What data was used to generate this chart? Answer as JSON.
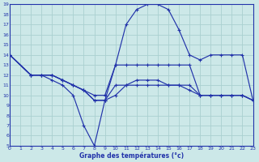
{
  "background_color": "#cce8e8",
  "grid_color": "#aad0d0",
  "line_color": "#2233aa",
  "xlabel": "Graphe des températures (°c)",
  "xlim": [
    0,
    23
  ],
  "ylim": [
    5,
    19
  ],
  "yticks": [
    5,
    6,
    7,
    8,
    9,
    10,
    11,
    12,
    13,
    14,
    15,
    16,
    17,
    18,
    19
  ],
  "xticks": [
    0,
    1,
    2,
    3,
    4,
    5,
    6,
    7,
    8,
    9,
    10,
    11,
    12,
    13,
    14,
    15,
    16,
    17,
    18,
    19,
    20,
    21,
    22,
    23
  ],
  "lines": [
    {
      "x": [
        0,
        2,
        3,
        4,
        5,
        6,
        7,
        8,
        9,
        10,
        11,
        12,
        13,
        14,
        15,
        16,
        17,
        18,
        19,
        20,
        21,
        22,
        23
      ],
      "y": [
        14,
        12,
        12,
        12,
        11.5,
        11,
        10.5,
        9.5,
        9.5,
        13,
        17,
        18.5,
        19,
        19,
        18.5,
        16.5,
        14,
        13.5,
        14,
        14,
        14,
        14,
        9.5
      ]
    },
    {
      "x": [
        0,
        2,
        3,
        4,
        5,
        6,
        7,
        8,
        9,
        10,
        11,
        12,
        13,
        14,
        15,
        16,
        17,
        18,
        19,
        20,
        21,
        22,
        23
      ],
      "y": [
        14,
        12,
        12,
        12,
        11.5,
        11,
        10.5,
        9.5,
        9.5,
        11,
        11,
        11,
        11,
        11,
        11,
        11,
        11,
        10,
        10,
        10,
        10,
        10,
        9.5
      ]
    },
    {
      "x": [
        0,
        2,
        3,
        4,
        5,
        6,
        7,
        8,
        9,
        10,
        11,
        12,
        13,
        14,
        15,
        16,
        17,
        18,
        19,
        20,
        21,
        22,
        23
      ],
      "y": [
        14,
        12,
        12,
        11.5,
        11,
        10,
        7,
        5,
        9.5,
        10,
        11,
        11.5,
        11.5,
        11.5,
        11,
        11,
        10.5,
        10,
        10,
        10,
        10,
        10,
        9.5
      ]
    },
    {
      "x": [
        0,
        2,
        3,
        4,
        5,
        6,
        7,
        8,
        9,
        10,
        11,
        12,
        13,
        14,
        15,
        16,
        17,
        18,
        19,
        20,
        21,
        22,
        23
      ],
      "y": [
        14,
        12,
        12,
        12,
        11.5,
        11,
        10.5,
        10,
        10,
        13,
        13,
        13,
        13,
        13,
        13,
        13,
        13,
        10,
        10,
        10,
        10,
        10,
        9.5
      ]
    }
  ]
}
